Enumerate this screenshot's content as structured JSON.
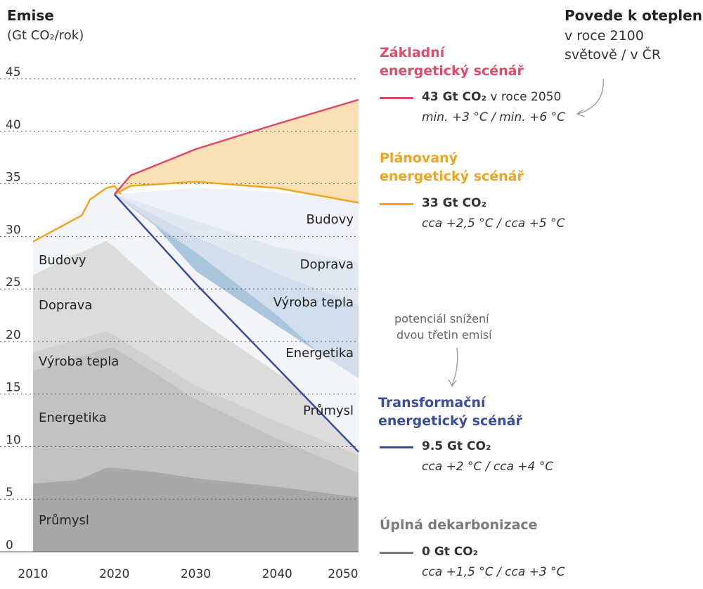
{
  "colors": {
    "zakladni": "#e14b6a",
    "planovany": "#f2a420",
    "transformacni": "#3a4c9a",
    "uplna": "#7a7a7a",
    "fill_orange": "#f9e0b5",
    "fill_blue": "#a9c6dc"
  },
  "axis": {
    "title": "Emise",
    "unit": "(Gt CO₂/rok)",
    "yticks": [
      "0",
      "5",
      "10",
      "15",
      "20",
      "25",
      "30",
      "35",
      "40",
      "45"
    ],
    "xticks": [
      "2010",
      "2020",
      "2030",
      "2040",
      "2050"
    ]
  },
  "header_right": {
    "title": "Povede k oteplení",
    "line1": "v roce 2100",
    "line2": "světově  / v ČR"
  },
  "annotation": {
    "line1": "potenciál snížení",
    "line2": "dvou třetin emisí"
  },
  "sectors_left": [
    "Budovy",
    "Doprava",
    "Výroba tepla",
    "Energetika",
    "Průmysl"
  ],
  "sectors_right": [
    "Budovy",
    "Doprava",
    "Výroba tepla",
    "Energetika",
    "Průmysl"
  ],
  "scenarios": [
    {
      "name_line1": "Základní",
      "name_line2": "energetický scénář",
      "value": "43 Gt CO₂",
      "value_suffix": " v roce 2050",
      "temp": "min. +3 °C / min. +6 °C"
    },
    {
      "name_line1": "Plánovaný",
      "name_line2": "energetický scénář",
      "value": "33 Gt CO₂",
      "value_suffix": "",
      "temp": "cca +2,5 °C / cca +5 °C"
    },
    {
      "name_line1": "Transformační",
      "name_line2": "energetický scénář",
      "value": "9.5 Gt CO₂",
      "value_suffix": "",
      "temp": "cca +2 °C / cca +4 °C"
    },
    {
      "name_line1": "Úplná dekarbonizace",
      "name_line2": "",
      "value": "0 Gt CO₂",
      "value_suffix": "",
      "temp": "cca +1,5 °C / cca +3 °C"
    }
  ],
  "chart_data": {
    "type": "area",
    "ylim": [
      0,
      45
    ],
    "xlim": [
      2010,
      2050
    ],
    "grid": true,
    "historical_total": {
      "x": [
        2010,
        2016,
        2017,
        2019,
        2020
      ],
      "y": [
        29.5,
        32,
        33.5,
        34.6,
        34.8
      ]
    },
    "scenario_lines": [
      {
        "name": "Základní energetický scénář",
        "x": [
          2020,
          2022,
          2030,
          2040,
          2050
        ],
        "y": [
          34,
          35.8,
          38.3,
          40.7,
          43
        ]
      },
      {
        "name": "Plánovaný energetický scénář",
        "x": [
          2020,
          2022,
          2030,
          2040,
          2050
        ],
        "y": [
          34,
          34.8,
          35.2,
          34.6,
          33.2
        ]
      },
      {
        "name": "Transformační energetický scénář",
        "x": [
          2020,
          2030,
          2040,
          2050
        ],
        "y": [
          34,
          25.5,
          17.5,
          9.5
        ]
      }
    ],
    "left_stack": {
      "x": [
        2010,
        2015,
        2016,
        2019,
        2020,
        2025,
        2030,
        2040,
        2050
      ],
      "layers": [
        {
          "name": "Průmysl",
          "y": [
            6.5,
            6.8,
            7.0,
            8.0,
            8.0,
            7.6,
            7.0,
            6.2,
            5.2
          ]
        },
        {
          "name": "Energetika",
          "y": [
            17.2,
            18.5,
            18.6,
            19.4,
            19.4,
            17.0,
            14.5,
            10.8,
            7.5
          ]
        },
        {
          "name": "Výroba tepla",
          "y": [
            19.0,
            20.1,
            20.3,
            21.0,
            20.6,
            18.2,
            15.8,
            12.4,
            9.2
          ]
        },
        {
          "name": "Doprava",
          "y": [
            26.3,
            28.3,
            28.5,
            29.6,
            29.0,
            25.5,
            22.3,
            17.0,
            12.8
          ]
        },
        {
          "name": "Budovy",
          "y": [
            29.5,
            32.0,
            32.5,
            34.6,
            34.8,
            31.0,
            26.7,
            21.5,
            16.5
          ]
        }
      ]
    },
    "right_stack": {
      "x": [
        2020,
        2030,
        2040,
        2050
      ],
      "layers": [
        {
          "name": "Průmysl",
          "y": [
            34,
            25.5,
            17.5,
            9.5
          ]
        },
        {
          "name": "Energetika",
          "y": [
            34,
            28.5,
            22.5,
            15.5
          ]
        },
        {
          "name": "Výroba tepla",
          "y": [
            34,
            30.0,
            26.5,
            23.5
          ]
        },
        {
          "name": "Doprava",
          "y": [
            34,
            31.5,
            29.0,
            27.5
          ]
        },
        {
          "name": "Budovy",
          "y": [
            34,
            34.6,
            34.2,
            33.2
          ]
        }
      ]
    }
  }
}
